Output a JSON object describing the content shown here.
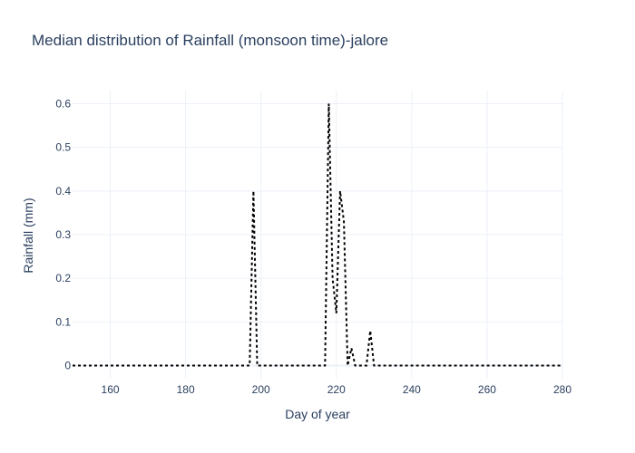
{
  "chart_data": {
    "type": "line",
    "title": "Median distribution of Rainfall (monsoon time)-jalore",
    "xlabel": "Day of year",
    "ylabel": "Rainfall (mm)",
    "xlim": [
      150,
      280
    ],
    "ylim": [
      -0.03,
      0.63
    ],
    "x_ticks": [
      160,
      180,
      200,
      220,
      240,
      260,
      280
    ],
    "y_ticks": [
      0,
      0.1,
      0.2,
      0.3,
      0.4,
      0.5,
      0.6
    ],
    "x_tick_labels": [
      "160",
      "180",
      "200",
      "220",
      "240",
      "260",
      "280"
    ],
    "y_tick_labels": [
      "0",
      "0.1",
      "0.2",
      "0.3",
      "0.4",
      "0.5",
      "0.6"
    ],
    "grid": true,
    "series": [
      {
        "color": "#000000",
        "dash": "dot",
        "x": [
          150,
          151,
          152,
          153,
          154,
          155,
          156,
          157,
          158,
          159,
          160,
          161,
          162,
          163,
          164,
          165,
          166,
          167,
          168,
          169,
          170,
          171,
          172,
          173,
          174,
          175,
          176,
          177,
          178,
          179,
          180,
          181,
          182,
          183,
          184,
          185,
          186,
          187,
          188,
          189,
          190,
          191,
          192,
          193,
          194,
          195,
          196,
          197,
          198,
          199,
          200,
          201,
          202,
          203,
          204,
          205,
          206,
          207,
          208,
          209,
          210,
          211,
          212,
          213,
          214,
          215,
          216,
          217,
          218,
          219,
          220,
          221,
          222,
          223,
          224,
          225,
          226,
          227,
          228,
          229,
          230,
          231,
          232,
          233,
          234,
          235,
          236,
          237,
          238,
          239,
          240,
          241,
          242,
          243,
          244,
          245,
          246,
          247,
          248,
          249,
          250,
          251,
          252,
          253,
          254,
          255,
          256,
          257,
          258,
          259,
          260,
          261,
          262,
          263,
          264,
          265,
          266,
          267,
          268,
          269,
          270,
          271,
          272,
          273,
          274,
          275,
          276,
          277,
          278,
          279,
          280
        ],
        "y": [
          0,
          0,
          0,
          0,
          0,
          0,
          0,
          0,
          0,
          0,
          0,
          0,
          0,
          0,
          0,
          0,
          0,
          0,
          0,
          0,
          0,
          0,
          0,
          0,
          0,
          0,
          0,
          0,
          0,
          0,
          0,
          0,
          0,
          0,
          0,
          0,
          0,
          0,
          0,
          0,
          0,
          0,
          0,
          0,
          0,
          0,
          0,
          0,
          0.4,
          0,
          0,
          0,
          0,
          0,
          0,
          0,
          0,
          0,
          0,
          0,
          0,
          0,
          0,
          0,
          0,
          0,
          0,
          0,
          0.6,
          0.2,
          0.12,
          0.4,
          0.33,
          0,
          0.04,
          0,
          0,
          0,
          0,
          0.08,
          0,
          0,
          0,
          0,
          0,
          0,
          0,
          0,
          0,
          0,
          0,
          0,
          0,
          0,
          0,
          0,
          0,
          0,
          0,
          0,
          0,
          0,
          0,
          0,
          0,
          0,
          0,
          0,
          0,
          0,
          0,
          0,
          0,
          0,
          0,
          0,
          0,
          0,
          0,
          0,
          0,
          0,
          0,
          0,
          0,
          0,
          0,
          0,
          0,
          0,
          0
        ]
      }
    ]
  }
}
